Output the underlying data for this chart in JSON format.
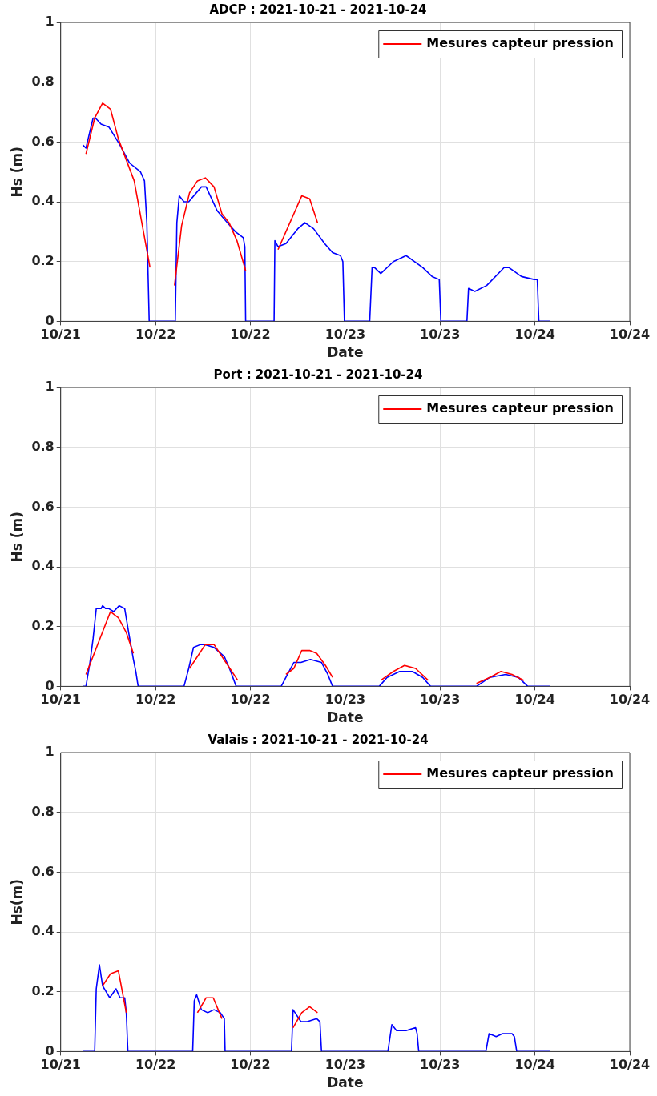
{
  "chart_data": [
    {
      "type": "line",
      "title": "ADCP : 2021-10-21 - 2021-10-24",
      "xlabel": "Date",
      "ylabel": "Hs (m)",
      "xlim": [
        "2021-10-21",
        "2021-10-24"
      ],
      "xticks": [
        {
          "value": "2021-10-21",
          "label": "10/21"
        },
        {
          "value": "2021-10-21T12:00",
          "label": "10/22"
        },
        {
          "value": "2021-10-22",
          "label": "10/22"
        },
        {
          "value": "2021-10-22T12:00",
          "label": "10/23"
        },
        {
          "value": "2021-10-23",
          "label": "10/23"
        },
        {
          "value": "2021-10-23T12:00",
          "label": "10/24"
        },
        {
          "value": "2021-10-24",
          "label": "10/24"
        }
      ],
      "ylim": [
        0,
        1
      ],
      "yticks": [
        0,
        0.2,
        0.4,
        0.6,
        0.8,
        1
      ],
      "grid": true,
      "legend": "top right",
      "series": [
        {
          "color": "#0000ff",
          "x": [
            "2021-10-21T02:48",
            "2021-10-21T03:12",
            "2021-10-21T04:06",
            "2021-10-21T04:24",
            "2021-10-21T05:06",
            "2021-10-21T06:06",
            "2021-10-21T07:30",
            "2021-10-21T08:42",
            "2021-10-21T10:06",
            "2021-10-21T10:36",
            "2021-10-21T10:54",
            "2021-10-21T11:12",
            "2021-10-21T14:30",
            "2021-10-21T14:42",
            "2021-10-21T15:00",
            "2021-10-21T15:36",
            "2021-10-21T16:12",
            "2021-10-21T17:48",
            "2021-10-21T18:24",
            "2021-10-21T19:48",
            "2021-10-21T21:06",
            "2021-10-21T22:06",
            "2021-10-21T23:06",
            "2021-10-21T23:18",
            "2021-10-21T23:24",
            "2021-10-22T03:00",
            "2021-10-22T03:06",
            "2021-10-22T03:30",
            "2021-10-22T04:30",
            "2021-10-22T06:00",
            "2021-10-22T06:54",
            "2021-10-22T08:00",
            "2021-10-22T09:24",
            "2021-10-22T10:24",
            "2021-10-22T11:24",
            "2021-10-22T11:42",
            "2021-10-22T11:54",
            "2021-10-22T15:06",
            "2021-10-22T15:24",
            "2021-10-22T15:42",
            "2021-10-22T16:30",
            "2021-10-22T18:06",
            "2021-10-22T19:42",
            "2021-10-22T21:48",
            "2021-10-22T23:00",
            "2021-10-22T23:54",
            "2021-10-23T00:06",
            "2021-10-23T03:24",
            "2021-10-23T03:36",
            "2021-10-23T04:24",
            "2021-10-23T05:54",
            "2021-10-23T08:06",
            "2021-10-23T08:42",
            "2021-10-23T10:18",
            "2021-10-23T11:54",
            "2021-10-23T12:18",
            "2021-10-23T12:30",
            "2021-10-23T13:54"
          ],
          "values": [
            0.59,
            0.58,
            0.68,
            0.68,
            0.66,
            0.65,
            0.59,
            0.53,
            0.5,
            0.47,
            0.33,
            0,
            0,
            0.33,
            0.42,
            0.4,
            0.4,
            0.45,
            0.45,
            0.37,
            0.33,
            0.3,
            0.28,
            0.25,
            0,
            0,
            0.27,
            0.25,
            0.26,
            0.31,
            0.33,
            0.31,
            0.26,
            0.23,
            0.22,
            0.2,
            0,
            0,
            0.18,
            0.18,
            0.16,
            0.2,
            0.22,
            0.18,
            0.15,
            0.14,
            0,
            0,
            0.11,
            0.1,
            0.12,
            0.18,
            0.18,
            0.15,
            0.14,
            0.14,
            0,
            0
          ]
        },
        {
          "name": "Mesures capteur pression",
          "color": "#ff0000",
          "x": [
            "2021-10-21T03:12",
            "2021-10-21T04:18",
            "2021-10-21T05:18",
            "2021-10-21T06:18",
            "2021-10-21T07:18",
            "2021-10-21T09:18",
            "2021-10-21T11:18",
            "2021-10-21T12:54",
            "2021-10-21T14:24",
            "2021-10-21T15:18",
            "2021-10-21T16:18",
            "2021-10-21T17:18",
            "2021-10-21T18:18",
            "2021-10-21T19:24",
            "2021-10-21T20:24",
            "2021-10-21T21:18",
            "2021-10-21T22:18",
            "2021-10-21T23:24",
            "2021-10-22T01:24",
            "2021-10-22T03:30",
            "2021-10-22T06:30",
            "2021-10-22T07:30",
            "2021-10-22T08:30"
          ],
          "values": [
            0.56,
            0.68,
            0.73,
            0.71,
            0.61,
            0.47,
            0.18,
            null,
            0.12,
            0.32,
            0.43,
            0.47,
            0.48,
            0.45,
            0.36,
            0.33,
            0.27,
            0.17,
            null,
            0.24,
            0.42,
            0.41,
            0.33
          ]
        }
      ]
    },
    {
      "type": "line",
      "title": "Port : 2021-10-21 - 2021-10-24",
      "xlabel": "Date",
      "ylabel": "Hs (m)",
      "xlim": [
        "2021-10-21",
        "2021-10-24"
      ],
      "xticks": [
        {
          "value": "2021-10-21",
          "label": "10/21"
        },
        {
          "value": "2021-10-21T12:00",
          "label": "10/22"
        },
        {
          "value": "2021-10-22",
          "label": "10/22"
        },
        {
          "value": "2021-10-22T12:00",
          "label": "10/23"
        },
        {
          "value": "2021-10-23",
          "label": "10/23"
        },
        {
          "value": "2021-10-23T12:00",
          "label": "10/24"
        },
        {
          "value": "2021-10-24",
          "label": "10/24"
        }
      ],
      "ylim": [
        0,
        1
      ],
      "yticks": [
        0,
        0.2,
        0.4,
        0.6,
        0.8,
        1
      ],
      "grid": true,
      "legend": "top right",
      "series": [
        {
          "color": "#0000ff",
          "x": [
            "2021-10-21T02:48",
            "2021-10-21T03:12",
            "2021-10-21T03:42",
            "2021-10-21T04:06",
            "2021-10-21T04:30",
            "2021-10-21T05:06",
            "2021-10-21T05:18",
            "2021-10-21T05:42",
            "2021-10-21T06:06",
            "2021-10-21T06:42",
            "2021-10-21T07:24",
            "2021-10-21T08:06",
            "2021-10-21T08:36",
            "2021-10-21T09:12",
            "2021-10-21T09:30",
            "2021-10-21T09:48",
            "2021-10-21T15:36",
            "2021-10-21T16:12",
            "2021-10-21T16:48",
            "2021-10-21T17:42",
            "2021-10-21T18:12",
            "2021-10-21T19:24",
            "2021-10-21T20:42",
            "2021-10-21T21:30",
            "2021-10-21T22:12",
            "2021-10-22T03:54",
            "2021-10-22T04:30",
            "2021-10-22T05:30",
            "2021-10-22T06:24",
            "2021-10-22T07:36",
            "2021-10-22T09:00",
            "2021-10-22T09:48",
            "2021-10-22T10:24",
            "2021-10-22T16:18",
            "2021-10-22T17:18",
            "2021-10-22T18:54",
            "2021-10-22T20:30",
            "2021-10-22T21:48",
            "2021-10-22T22:48",
            "2021-10-23T04:36",
            "2021-10-23T06:18",
            "2021-10-23T08:18",
            "2021-10-23T09:54",
            "2021-10-23T11:06",
            "2021-10-23T13:54"
          ],
          "values": [
            0,
            0,
            0.08,
            0.16,
            0.26,
            0.26,
            0.27,
            0.26,
            0.26,
            0.25,
            0.27,
            0.26,
            0.18,
            0.09,
            0.05,
            0,
            0,
            0.06,
            0.13,
            0.14,
            0.14,
            0.13,
            0.1,
            0.05,
            0,
            0,
            0.03,
            0.08,
            0.08,
            0.09,
            0.08,
            0.04,
            0,
            0,
            0.03,
            0.05,
            0.05,
            0.03,
            0,
            0,
            0.03,
            0.04,
            0.03,
            0,
            0
          ]
        },
        {
          "name": "Mesures capteur pression",
          "color": "#ff0000",
          "x": [
            "2021-10-21T03:12",
            "2021-10-21T06:18",
            "2021-10-21T07:18",
            "2021-10-21T08:18",
            "2021-10-21T09:12",
            "2021-10-21T12:48",
            "2021-10-21T16:18",
            "2021-10-21T18:18",
            "2021-10-21T19:24",
            "2021-10-21T20:54",
            "2021-10-21T22:24",
            "2021-10-22T01:24",
            "2021-10-22T04:30",
            "2021-10-22T05:30",
            "2021-10-22T06:30",
            "2021-10-22T07:30",
            "2021-10-22T08:24",
            "2021-10-22T09:30",
            "2021-10-22T10:24",
            "2021-10-22T13:24",
            "2021-10-22T16:30",
            "2021-10-22T18:06",
            "2021-10-22T19:30",
            "2021-10-22T20:54",
            "2021-10-22T22:30",
            "2021-10-23T01:36",
            "2021-10-23T04:36",
            "2021-10-23T06:18",
            "2021-10-23T07:42",
            "2021-10-23T09:06",
            "2021-10-23T10:36"
          ],
          "values": [
            0.04,
            0.25,
            0.23,
            0.18,
            0.11,
            null,
            0.06,
            0.14,
            0.14,
            0.08,
            0.02,
            null,
            0.04,
            0.06,
            0.12,
            0.12,
            0.11,
            0.07,
            0.03,
            null,
            0.02,
            0.05,
            0.07,
            0.06,
            0.02,
            null,
            0.01,
            0.03,
            0.05,
            0.04,
            0.02
          ]
        }
      ]
    },
    {
      "type": "line",
      "title": "Valais : 2021-10-21 - 2021-10-24",
      "xlabel": "Date",
      "ylabel": "Hs(m)",
      "xlim": [
        "2021-10-21",
        "2021-10-24"
      ],
      "xticks": [
        {
          "value": "2021-10-21",
          "label": "10/21"
        },
        {
          "value": "2021-10-21T12:00",
          "label": "10/22"
        },
        {
          "value": "2021-10-22",
          "label": "10/22"
        },
        {
          "value": "2021-10-22T12:00",
          "label": "10/23"
        },
        {
          "value": "2021-10-23",
          "label": "10/23"
        },
        {
          "value": "2021-10-23T12:00",
          "label": "10/24"
        },
        {
          "value": "2021-10-24",
          "label": "10/24"
        }
      ],
      "ylim": [
        0,
        1
      ],
      "yticks": [
        0,
        0.2,
        0.4,
        0.6,
        0.8,
        1
      ],
      "grid": true,
      "legend": "top right",
      "series": [
        {
          "color": "#0000ff",
          "x": [
            "2021-10-21T02:48",
            "2021-10-21T04:18",
            "2021-10-21T04:30",
            "2021-10-21T04:54",
            "2021-10-21T05:18",
            "2021-10-21T06:12",
            "2021-10-21T07:00",
            "2021-10-21T07:30",
            "2021-10-21T08:06",
            "2021-10-21T08:18",
            "2021-10-21T08:30",
            "2021-10-21T16:42",
            "2021-10-21T16:54",
            "2021-10-21T17:12",
            "2021-10-21T17:48",
            "2021-10-21T18:36",
            "2021-10-21T19:24",
            "2021-10-21T20:12",
            "2021-10-21T20:42",
            "2021-10-21T20:48",
            "2021-10-22T05:12",
            "2021-10-22T05:24",
            "2021-10-22T06:24",
            "2021-10-22T07:12",
            "2021-10-22T08:24",
            "2021-10-22T08:48",
            "2021-10-22T09:00",
            "2021-10-22T17:24",
            "2021-10-22T17:54",
            "2021-10-22T18:30",
            "2021-10-22T19:42",
            "2021-10-22T20:54",
            "2021-10-22T21:06",
            "2021-10-22T21:18",
            "2021-10-23T05:48",
            "2021-10-23T06:12",
            "2021-10-23T07:06",
            "2021-10-23T07:54",
            "2021-10-23T09:06",
            "2021-10-23T09:24",
            "2021-10-23T09:42",
            "2021-10-23T13:54"
          ],
          "values": [
            0,
            0,
            0.21,
            0.29,
            0.22,
            0.18,
            0.21,
            0.18,
            0.18,
            0.13,
            0,
            0,
            0.17,
            0.19,
            0.14,
            0.13,
            0.14,
            0.13,
            0.11,
            0,
            0,
            0.14,
            0.1,
            0.1,
            0.11,
            0.1,
            0,
            0,
            0.09,
            0.07,
            0.07,
            0.08,
            0.06,
            0,
            0,
            0.06,
            0.05,
            0.06,
            0.06,
            0.05,
            0,
            0
          ]
        },
        {
          "name": "Mesures capteur pression",
          "color": "#ff0000",
          "x": [
            "2021-10-21T05:18",
            "2021-10-21T06:18",
            "2021-10-21T07:18",
            "2021-10-21T08:18",
            "2021-10-21T12:48",
            "2021-10-21T17:18",
            "2021-10-21T18:24",
            "2021-10-21T19:18",
            "2021-10-21T20:24",
            "2021-10-22T00:54",
            "2021-10-22T05:24",
            "2021-10-22T06:30",
            "2021-10-22T07:30",
            "2021-10-22T08:30"
          ],
          "values": [
            0.22,
            0.26,
            0.27,
            0.13,
            null,
            0.13,
            0.18,
            0.18,
            0.11,
            null,
            0.08,
            0.13,
            0.15,
            0.13
          ]
        }
      ]
    }
  ]
}
